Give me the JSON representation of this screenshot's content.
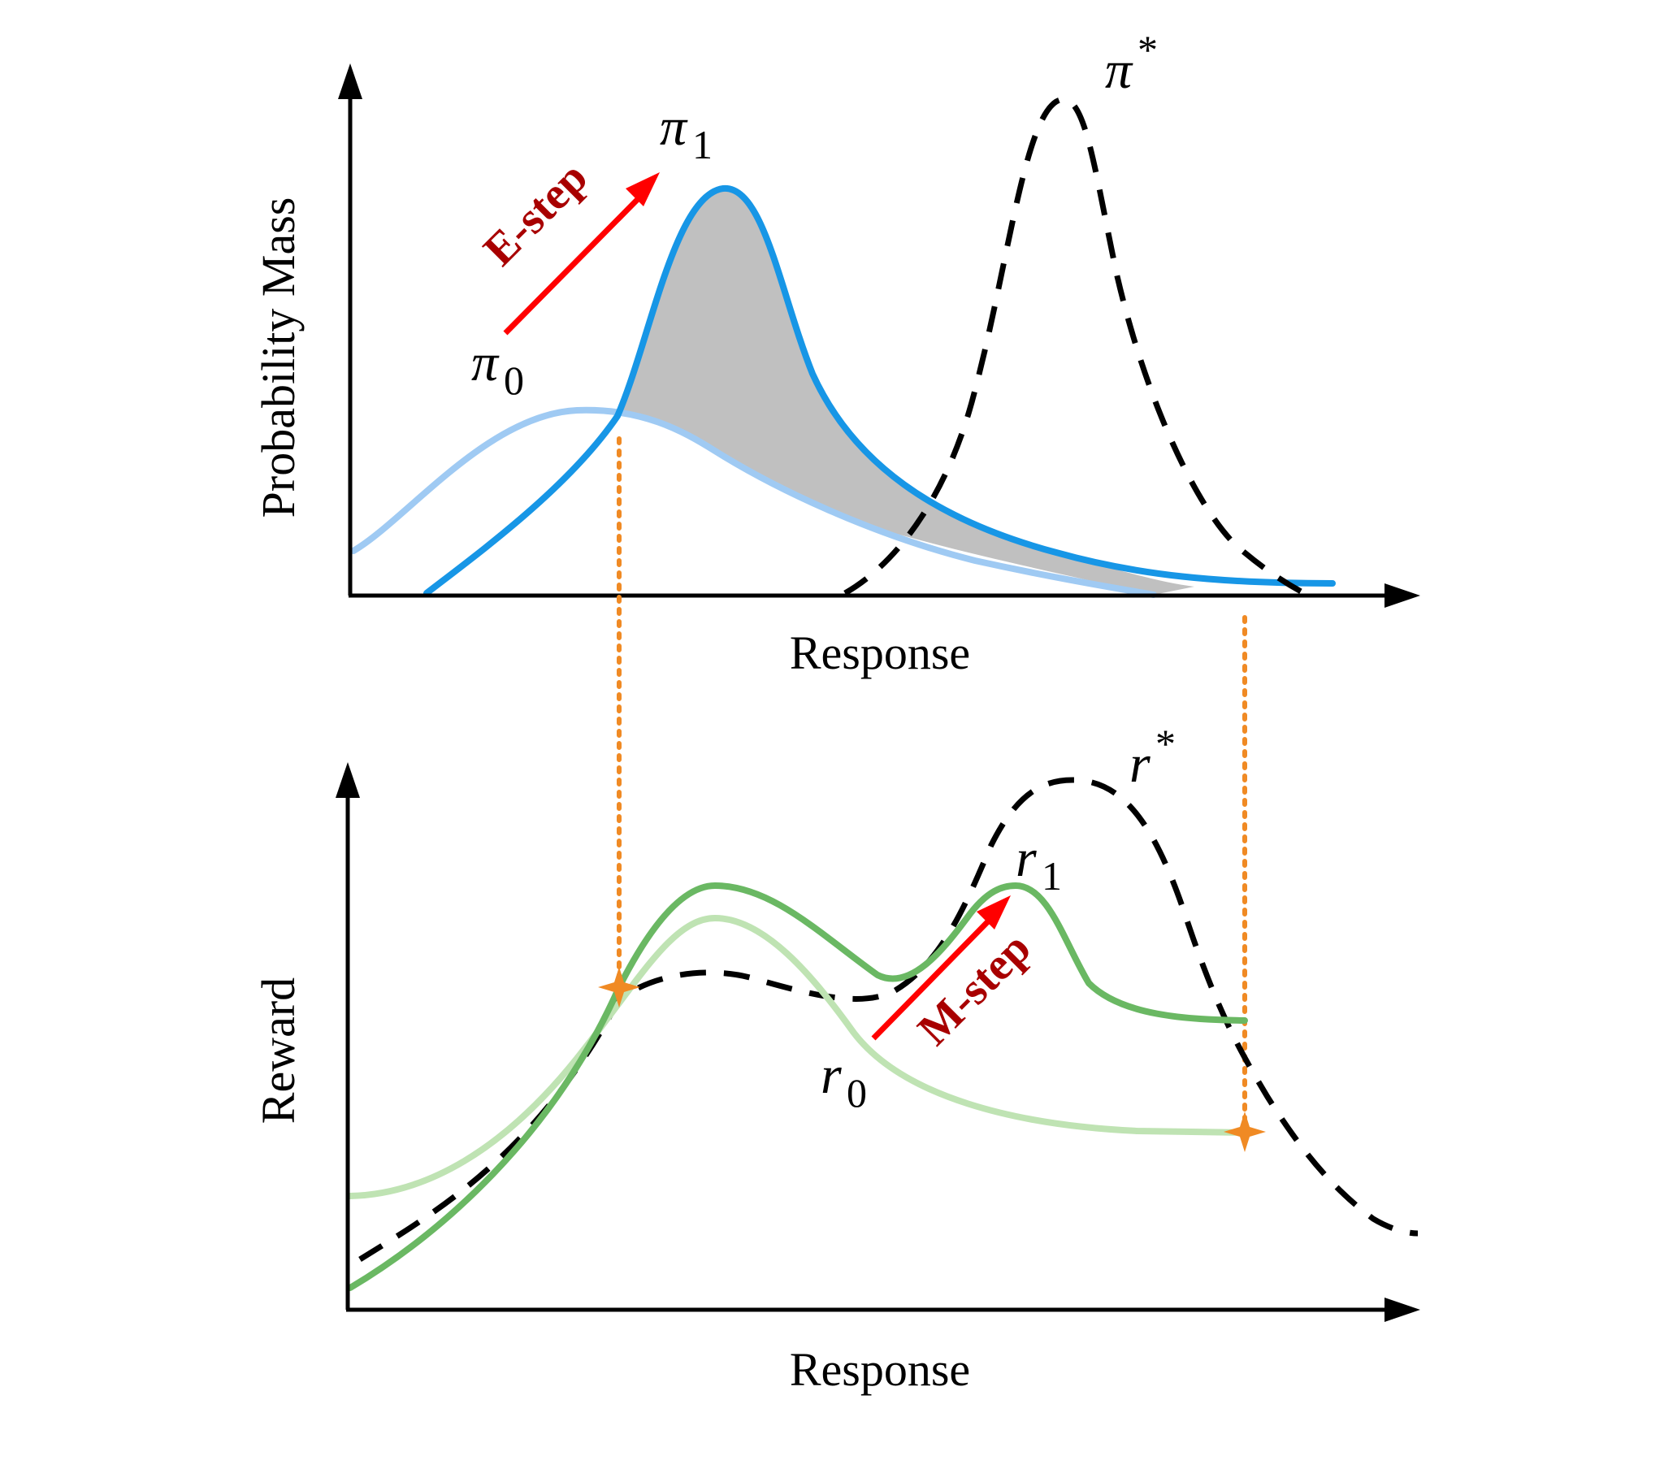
{
  "top_panel": {
    "y_axis_label": "Probability Mass",
    "x_axis_label": "Response",
    "curves": {
      "pi0": {
        "symbol": "π",
        "subscript": "0",
        "color": "#9fcaf3"
      },
      "pi1": {
        "symbol": "π",
        "subscript": "1",
        "color": "#1796e6"
      },
      "pi_star": {
        "symbol": "π",
        "superscript": "*",
        "color": "#000000"
      }
    },
    "shaded_region_color": "#c0c0c0",
    "step": {
      "label": "E-step",
      "arrow_color": "#ff0000",
      "text_color": "#a80000"
    }
  },
  "bottom_panel": {
    "y_axis_label": "Reward",
    "x_axis_label": "Response",
    "curves": {
      "r0": {
        "symbol": "r",
        "subscript": "0",
        "color": "#bfe3b3"
      },
      "r1": {
        "symbol": "r",
        "subscript": "1",
        "color": "#6ab863"
      },
      "r_star": {
        "symbol": "r",
        "superscript": "*",
        "color": "#000000"
      }
    },
    "step": {
      "label": "M-step",
      "arrow_color": "#ff0000",
      "text_color": "#a80000"
    }
  },
  "connector_color": "#f08a24"
}
